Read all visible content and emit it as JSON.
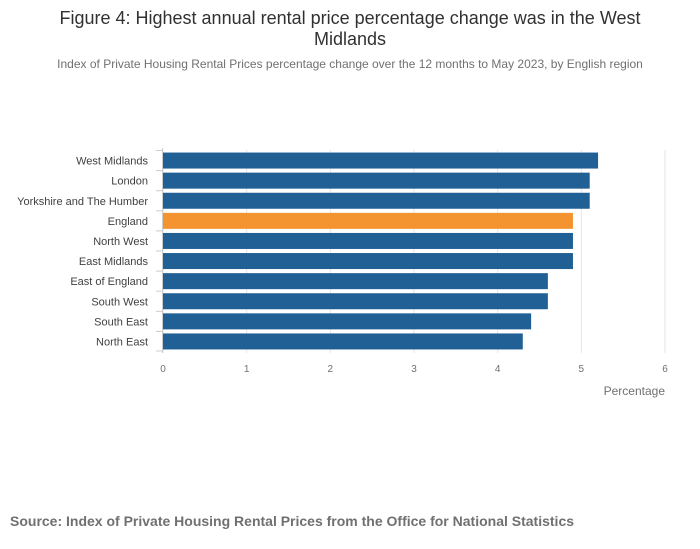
{
  "title": "Figure 4: Highest annual rental price percentage change was in the West Midlands",
  "subtitle": "Index of Private Housing Rental Prices percentage change over the 12 months to May 2023, by English region",
  "source": "Source: Index of Private Housing Rental Prices from the Office for National Statistics",
  "colors": {
    "bar": "#206095",
    "highlight": "#f39431",
    "grid": "#e6e6e6",
    "axis": "#cccccc"
  },
  "chart_data": {
    "type": "bar",
    "orientation": "horizontal",
    "categories": [
      "West Midlands",
      "London",
      "Yorkshire and The Humber",
      "England",
      "North West",
      "East Midlands",
      "East of England",
      "South West",
      "South East",
      "North East"
    ],
    "values": [
      5.2,
      5.1,
      5.1,
      4.9,
      4.9,
      4.9,
      4.6,
      4.6,
      4.4,
      4.3
    ],
    "highlight": "England",
    "xlabel": "Percentage",
    "ylabel": "",
    "xlim": [
      0,
      6
    ],
    "xticks": [
      "0",
      "1",
      "2",
      "3",
      "4",
      "5",
      "6"
    ]
  }
}
